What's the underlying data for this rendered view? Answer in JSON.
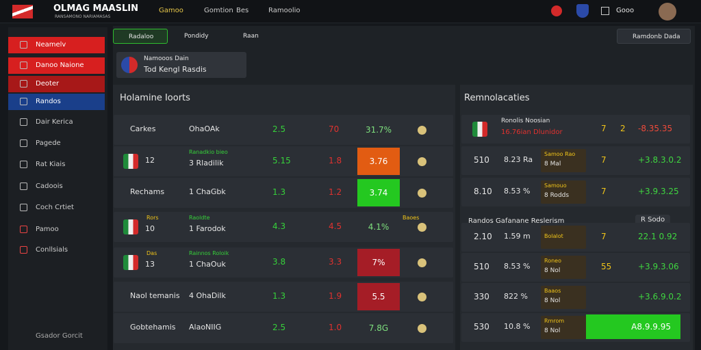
{
  "header": {
    "brand": "OLMAG MAASLIN",
    "tagline": "RANSAMONO NARIAMASAS",
    "nav": [
      "Gamoo",
      "Gomtion",
      "Bes",
      "Ramoolio"
    ],
    "user": "Gooo"
  },
  "sidebar": {
    "items": [
      "Neamelv",
      "Danoo Naione",
      "Deoter",
      "Randos",
      "Dair Kerica",
      "Pagede",
      "Rat Kiais",
      "Cadoois",
      "Coch Crtiet",
      "Pamoo",
      "Conllsials"
    ],
    "footer": "Gsador Gorcit"
  },
  "toolbar": {
    "tabs": [
      "Radaloo",
      "Pondidy",
      "Raan"
    ],
    "action": "Ramdonb Dada"
  },
  "info_card": {
    "title": "Namooos Dain",
    "subtitle": "Tod Kengl Rasdis"
  },
  "left_panel": {
    "title": "Holamine Ioorts",
    "rows": [
      {
        "team": "Carkes",
        "match": "OhaOAk",
        "a": "2.5",
        "b": "70",
        "c": "31.7%",
        "flag": false
      },
      {
        "team": "12",
        "sub": "Ranadkio bieo",
        "match": "3 Rladilik",
        "a": "5.15",
        "b": "1.8",
        "c": "3.76",
        "flag": true,
        "highlight": "#e25c12"
      },
      {
        "team": "Rechams",
        "match": "1 ChaGbk",
        "a": "1.3",
        "b": "1.2",
        "c": "3.74",
        "flag": false,
        "highlight": "#24c820"
      },
      {
        "tag": "Rors",
        "team": "10",
        "sub": "Raoldte",
        "match": "1 Farodok",
        "a": "4.3",
        "b": "4.5",
        "c": "4.1%",
        "corner": "Baoes",
        "flag": true
      },
      {
        "tag": "Das",
        "team": "13",
        "sub": "Rainnos Roloik",
        "match": "1 ChaOuk",
        "a": "3.8",
        "b": "3.3",
        "c": "7%",
        "flag": true,
        "highlight": "#a51d26"
      },
      {
        "team": "Naol temanis",
        "match": "4 OhaDilk",
        "a": "1.3",
        "b": "1.9",
        "c": "5.5",
        "flag": false,
        "highlight": "#a51d26"
      },
      {
        "team": "Gobtehamis",
        "match": "AlaoNIIG",
        "a": "2.5",
        "b": "1.0",
        "c": "7.8G",
        "flag": false
      }
    ]
  },
  "right_panel": {
    "title": "Remnolacaties",
    "section": "Randos Gafanane Reslerism",
    "section_badge": "R Sodo",
    "rows": [
      {
        "head": "Ronolis Noosian",
        "sub": "16.76ian Dlunidor",
        "d": "7",
        "e": "2",
        "f": "-8.35.35",
        "flag": true
      },
      {
        "a": "510",
        "b": "8.23 Ra",
        "box": "Samoo Rao",
        "box2": "8 Mal",
        "d": "7",
        "f": "+3.8.3.0.2"
      },
      {
        "a": "8.10",
        "b": "8.53 %",
        "box": "Samouo",
        "box2": "8 Rodds",
        "d": "7",
        "f": "+3.9.3.25"
      },
      {
        "a": "2.10",
        "b": "1.59 m",
        "box": "Bolalot",
        "d": "7",
        "f": "22.1 0.92"
      },
      {
        "a": "510",
        "b": "8.53 %",
        "box": "Roneo",
        "box2": "8 Nol",
        "d": "55",
        "f": "+3.9.3.06"
      },
      {
        "a": "330",
        "b": "822 %",
        "box": "Baaos",
        "box2": "8 Nol",
        "f": "+3.6.9.0.2"
      },
      {
        "a": "530",
        "b": "10.8 %",
        "box": "Rmrom",
        "box2": "8 Nol",
        "f": "A8.9.9.95",
        "highlight": "#24c820"
      }
    ]
  }
}
